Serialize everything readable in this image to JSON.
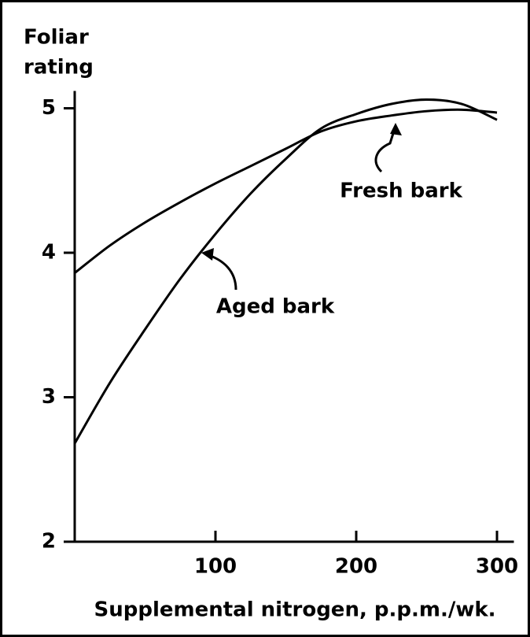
{
  "chart_data": {
    "type": "line",
    "ylabel": [
      "Foliar",
      "rating"
    ],
    "xlabel": "Supplemental nitrogen, p.p.m./wk.",
    "x": [
      0,
      25,
      50,
      75,
      100,
      125,
      150,
      175,
      200,
      225,
      250,
      275,
      300
    ],
    "series": [
      {
        "name": "Fresh bark",
        "color": "#000000",
        "values": [
          3.86,
          4.05,
          4.21,
          4.35,
          4.48,
          4.6,
          4.72,
          4.84,
          4.91,
          4.95,
          4.98,
          4.99,
          4.97
        ]
      },
      {
        "name": "Aged bark",
        "color": "#000000",
        "values": [
          2.68,
          3.1,
          3.47,
          3.82,
          4.13,
          4.41,
          4.65,
          4.86,
          4.96,
          5.03,
          5.06,
          5.03,
          4.92
        ]
      }
    ],
    "xlim": [
      0,
      312
    ],
    "xticks": [
      100,
      200,
      300
    ],
    "ylim": [
      2,
      5.12
    ],
    "yticks": [
      2,
      3,
      4,
      5
    ],
    "grid": false
  }
}
